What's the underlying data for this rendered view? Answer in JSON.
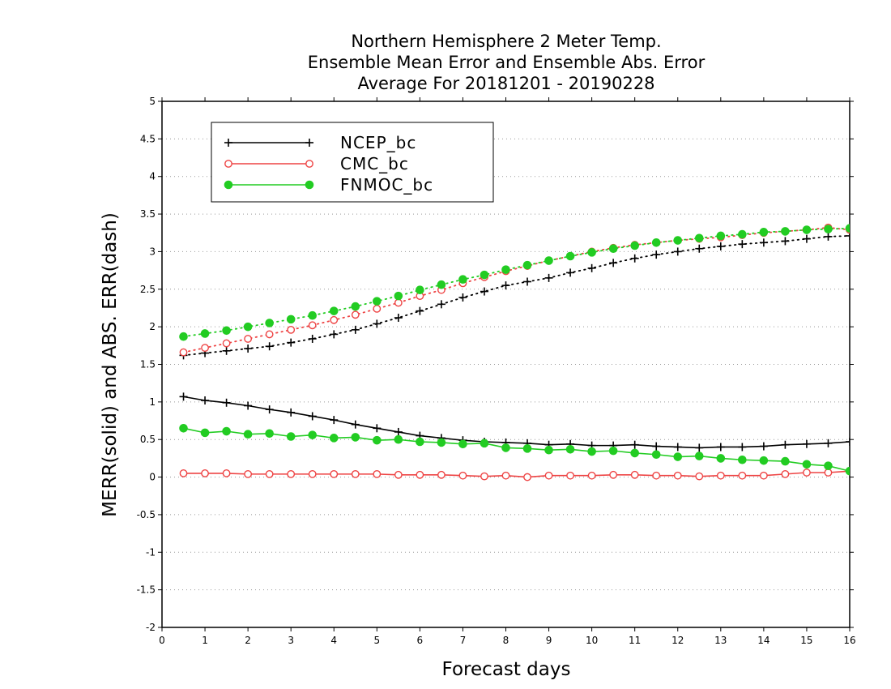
{
  "chart_data": {
    "type": "line",
    "title": [
      "Northern Hemisphere 2 Meter Temp.",
      "Ensemble Mean Error and Ensemble Abs. Error",
      "Average For 20181201 - 20190228"
    ],
    "xlabel": "Forecast days",
    "ylabel": "MERR(solid) and ABS. ERR(dash)",
    "xlim": [
      0,
      16
    ],
    "ylim": [
      -2,
      5
    ],
    "xticks": [
      "0",
      "1",
      "2",
      "3",
      "4",
      "5",
      "6",
      "7",
      "8",
      "9",
      "10",
      "11",
      "12",
      "13",
      "14",
      "15",
      "16"
    ],
    "yticks": [
      "5",
      "4.5",
      "4",
      "3.5",
      "3",
      "2.5",
      "2",
      "1.5",
      "1",
      "0.5",
      "0",
      "-0.5",
      "-1",
      "-1.5",
      "-2"
    ],
    "grid": "horizontal dotted",
    "legend_position": "top-left",
    "x": [
      0.5,
      1,
      1.5,
      2,
      2.5,
      3,
      3.5,
      4,
      4.5,
      5,
      5.5,
      6,
      6.5,
      7,
      7.5,
      8,
      8.5,
      9,
      9.5,
      10,
      10.5,
      11,
      11.5,
      12,
      12.5,
      13,
      13.5,
      14,
      14.5,
      15,
      15.5,
      16
    ],
    "series": [
      {
        "name": "NCEP_bc",
        "color": "#000000",
        "marker": "plus",
        "merr": [
          1.07,
          1.02,
          0.99,
          0.95,
          0.9,
          0.86,
          0.81,
          0.76,
          0.7,
          0.65,
          0.6,
          0.55,
          0.52,
          0.49,
          0.47,
          0.46,
          0.45,
          0.43,
          0.44,
          0.42,
          0.42,
          0.43,
          0.41,
          0.4,
          0.39,
          0.4,
          0.4,
          0.41,
          0.43,
          0.44,
          0.45,
          0.47
        ],
        "abs_err": [
          1.62,
          1.65,
          1.68,
          1.71,
          1.74,
          1.79,
          1.84,
          1.9,
          1.96,
          2.04,
          2.12,
          2.21,
          2.3,
          2.39,
          2.47,
          2.55,
          2.6,
          2.65,
          2.72,
          2.78,
          2.85,
          2.91,
          2.96,
          3.0,
          3.04,
          3.07,
          3.1,
          3.12,
          3.14,
          3.17,
          3.2,
          3.21
        ]
      },
      {
        "name": "CMC_bc",
        "color": "#ee4444",
        "marker": "open-circle",
        "merr": [
          0.05,
          0.05,
          0.05,
          0.04,
          0.04,
          0.04,
          0.04,
          0.04,
          0.04,
          0.04,
          0.03,
          0.03,
          0.03,
          0.02,
          0.01,
          0.02,
          0.0,
          0.02,
          0.02,
          0.02,
          0.03,
          0.03,
          0.02,
          0.02,
          0.01,
          0.02,
          0.02,
          0.02,
          0.04,
          0.06,
          0.06,
          0.08
        ],
        "abs_err": [
          1.66,
          1.72,
          1.78,
          1.84,
          1.9,
          1.96,
          2.02,
          2.09,
          2.16,
          2.24,
          2.32,
          2.41,
          2.49,
          2.58,
          2.66,
          2.74,
          2.81,
          2.88,
          2.94,
          3.0,
          3.05,
          3.09,
          3.12,
          3.15,
          3.17,
          3.19,
          3.22,
          3.25,
          3.27,
          3.29,
          3.32,
          3.29
        ]
      },
      {
        "name": "FNMOC_bc",
        "color": "#22cc22",
        "marker": "filled-circle",
        "merr": [
          0.65,
          0.59,
          0.61,
          0.57,
          0.58,
          0.54,
          0.56,
          0.52,
          0.53,
          0.49,
          0.5,
          0.47,
          0.46,
          0.44,
          0.45,
          0.39,
          0.38,
          0.36,
          0.37,
          0.34,
          0.35,
          0.32,
          0.3,
          0.27,
          0.28,
          0.25,
          0.23,
          0.22,
          0.21,
          0.17,
          0.15,
          0.08
        ],
        "abs_err": [
          1.87,
          1.91,
          1.95,
          2.0,
          2.05,
          2.1,
          2.15,
          2.21,
          2.27,
          2.34,
          2.41,
          2.49,
          2.56,
          2.63,
          2.69,
          2.76,
          2.82,
          2.88,
          2.94,
          2.99,
          3.04,
          3.08,
          3.12,
          3.15,
          3.18,
          3.21,
          3.23,
          3.26,
          3.27,
          3.29,
          3.3,
          3.31
        ]
      }
    ]
  }
}
